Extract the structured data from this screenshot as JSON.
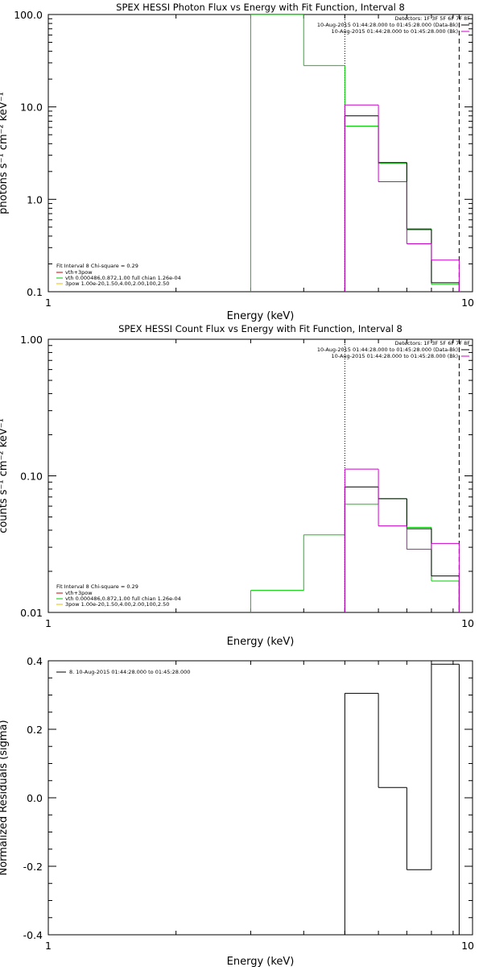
{
  "chart_data": [
    {
      "type": "line",
      "title": "SPEX HESSI Photon Flux vs Energy with Fit Function, Interval 8",
      "xlabel": "Energy (keV)",
      "ylabel": "photons s⁻¹ cm⁻² keV⁻¹",
      "xscale": "log",
      "yscale": "log",
      "xlim": [
        1,
        10
      ],
      "ylim": [
        0.1,
        100
      ],
      "xticks": [
        {
          "v": 1,
          "label": "1"
        },
        {
          "v": 10,
          "label": "10"
        }
      ],
      "yticks": [
        {
          "v": 0.1,
          "label": "0.1"
        },
        {
          "v": 1,
          "label": "1.0"
        },
        {
          "v": 10,
          "label": "10.0"
        },
        {
          "v": 100,
          "label": "100.0"
        }
      ],
      "vlines": [
        {
          "x": 5.0,
          "style": "dotted"
        },
        {
          "x": 9.3,
          "style": "dashed"
        }
      ],
      "detectors_text": "Detectors: 1F 3F 5F 6F 7F 8F",
      "top_legend": [
        {
          "text": "10-Aug-2015 01:44:28.000 to 01:45:28.000 (Data-Bk)",
          "color": "#000000"
        },
        {
          "text": "10-Aug-2015 01:44:28.000 to 01:45:28.000 (Bk)",
          "color": "#cc00cc"
        }
      ],
      "fit_header": "Fit Interval 8   Chi-square = 0.29",
      "fit_legend": [
        {
          "text": "vth+3pow",
          "color": "#cc0000"
        },
        {
          "text": "vth 0.000486,0.872,1.00  full chian 1.26e-04",
          "color": "#00cc00"
        },
        {
          "text": "3pow 1.00e-20,1.50,4.00,2.00,100,2.50",
          "color": "#e8c000"
        }
      ],
      "series": [
        {
          "color": "#00cc00",
          "edges": [
            3.0,
            4.0,
            5.0,
            6.0,
            7.0,
            8.0,
            9.3
          ],
          "values": [
            100,
            28,
            6.2,
            2.45,
            0.48,
            0.12
          ]
        },
        {
          "color": "#000000",
          "edges": [
            5.0,
            6.0,
            7.0,
            8.0,
            9.3
          ],
          "values": [
            8.0,
            2.5,
            0.47,
            0.125
          ]
        },
        {
          "color": "#cc00cc",
          "edges": [
            5.0,
            6.0,
            7.0,
            8.0,
            9.3
          ],
          "values": [
            10.5,
            1.55,
            0.33,
            0.22
          ]
        }
      ]
    },
    {
      "type": "line",
      "title": "SPEX HESSI Count Flux vs Energy with Fit Function, Interval 8",
      "xlabel": "Energy (keV)",
      "ylabel": "counts s⁻¹ cm⁻² keV⁻¹",
      "xscale": "log",
      "yscale": "log",
      "xlim": [
        1,
        10
      ],
      "ylim": [
        0.01,
        1
      ],
      "xticks": [
        {
          "v": 1,
          "label": "1"
        },
        {
          "v": 10,
          "label": "10"
        }
      ],
      "yticks": [
        {
          "v": 0.01,
          "label": "0.01"
        },
        {
          "v": 0.1,
          "label": "0.10"
        },
        {
          "v": 1,
          "label": "1.00"
        }
      ],
      "vlines": [
        {
          "x": 5.0,
          "style": "dotted"
        },
        {
          "x": 9.3,
          "style": "dashed"
        }
      ],
      "detectors_text": "Detectors: 1F 3F 5F 6F 7F 8F",
      "top_legend": [
        {
          "text": "10-Aug-2015 01:44:28.000 to 01:45:28.000 (Data-Bk)",
          "color": "#000000"
        },
        {
          "text": "10-Aug-2015 01:44:28.000 to 01:45:28.000 (Bk)",
          "color": "#cc00cc"
        }
      ],
      "fit_header": "Fit Interval 8   Chi-square = 0.29",
      "fit_legend": [
        {
          "text": "vth+3pow",
          "color": "#cc0000"
        },
        {
          "text": "vth 0.000486,0.872,1.00  full chian 1.26e-04",
          "color": "#00cc00"
        },
        {
          "text": "3pow 1.00e-20,1.50,4.00,2.00,100,2.50",
          "color": "#e8c000"
        }
      ],
      "series": [
        {
          "color": "#00cc00",
          "edges": [
            3.0,
            4.0,
            5.0,
            6.0,
            7.0,
            8.0,
            9.3
          ],
          "values": [
            0.0145,
            0.037,
            0.062,
            0.068,
            0.042,
            0.017
          ]
        },
        {
          "color": "#000000",
          "edges": [
            5.0,
            6.0,
            7.0,
            8.0,
            9.3
          ],
          "values": [
            0.083,
            0.068,
            0.041,
            0.0185
          ]
        },
        {
          "color": "#cc00cc",
          "edges": [
            5.0,
            6.0,
            7.0,
            8.0,
            9.3
          ],
          "values": [
            0.112,
            0.043,
            0.029,
            0.032
          ]
        }
      ]
    },
    {
      "type": "line",
      "title": "",
      "xlabel": "Energy (keV)",
      "ylabel": "Normalized Residuals (sigma)",
      "xscale": "log",
      "yscale": "linear",
      "xlim": [
        1,
        10
      ],
      "ylim": [
        -0.4,
        0.4
      ],
      "xticks": [
        {
          "v": 1,
          "label": "1"
        },
        {
          "v": 10,
          "label": "10"
        }
      ],
      "yticks": [
        {
          "v": -0.4,
          "label": "-0.4"
        },
        {
          "v": -0.2,
          "label": "-0.2"
        },
        {
          "v": 0.0,
          "label": "0.0"
        },
        {
          "v": 0.2,
          "label": "0.2"
        },
        {
          "v": 0.4,
          "label": "0.4"
        }
      ],
      "legend": [
        {
          "text": "8. 10-Aug-2015 01:44:28.000 to 01:45:28.000",
          "color": "#000000"
        }
      ],
      "series": [
        {
          "color": "#000000",
          "edges": [
            5.0,
            6.0,
            7.0,
            8.0,
            9.3
          ],
          "values": [
            0.305,
            0.03,
            -0.21,
            0.39
          ],
          "baseline": -0.4
        }
      ]
    }
  ]
}
